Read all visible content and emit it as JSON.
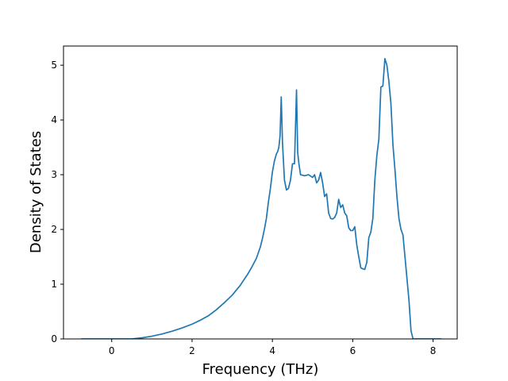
{
  "chart_data": {
    "type": "line",
    "title": "",
    "xlabel": "Frequency (THz)",
    "ylabel": "Density of States",
    "xlim": [
      -1.2,
      8.6
    ],
    "ylim": [
      0,
      5.35
    ],
    "xticks": [
      0,
      2,
      4,
      6,
      8
    ],
    "yticks": [
      0,
      1,
      2,
      3,
      4,
      5
    ],
    "grid": false,
    "legend": "none",
    "line_color": "#1f77b4",
    "series": [
      {
        "x": [
          -0.75,
          -0.5,
          -0.25,
          0.0,
          0.25,
          0.5,
          0.75,
          1.0,
          1.25,
          1.5,
          1.75,
          2.0,
          2.2,
          2.4,
          2.6,
          2.8,
          3.0,
          3.2,
          3.4,
          3.5,
          3.6,
          3.7,
          3.75,
          3.8,
          3.85,
          3.9,
          3.95,
          4.0,
          4.05,
          4.1,
          4.13,
          4.16,
          4.19,
          4.22,
          4.25,
          4.3,
          4.35,
          4.4,
          4.45,
          4.5,
          4.55,
          4.6,
          4.63,
          4.66,
          4.7,
          4.8,
          4.9,
          5.0,
          5.05,
          5.1,
          5.15,
          5.2,
          5.25,
          5.3,
          5.35,
          5.4,
          5.45,
          5.5,
          5.55,
          5.6,
          5.65,
          5.7,
          5.75,
          5.8,
          5.85,
          5.9,
          5.95,
          6.0,
          6.05,
          6.1,
          6.15,
          6.2,
          6.25,
          6.3,
          6.35,
          6.4,
          6.45,
          6.5,
          6.55,
          6.6,
          6.65,
          6.7,
          6.75,
          6.8,
          6.85,
          6.9,
          6.95,
          7.0,
          7.05,
          7.1,
          7.15,
          7.2,
          7.25,
          7.3,
          7.35,
          7.4,
          7.45,
          7.5,
          7.7,
          8.0,
          8.2
        ],
        "y": [
          0.0,
          0.0,
          0.0,
          0.0,
          0.0,
          0.0,
          0.02,
          0.05,
          0.09,
          0.14,
          0.2,
          0.27,
          0.34,
          0.42,
          0.53,
          0.66,
          0.8,
          0.98,
          1.2,
          1.33,
          1.47,
          1.68,
          1.83,
          2.0,
          2.2,
          2.5,
          2.75,
          3.05,
          3.25,
          3.38,
          3.42,
          3.5,
          3.7,
          4.42,
          3.6,
          2.9,
          2.72,
          2.75,
          2.9,
          3.2,
          3.2,
          4.55,
          3.4,
          3.2,
          3.0,
          2.98,
          3.0,
          2.95,
          3.0,
          2.85,
          2.9,
          3.04,
          2.85,
          2.6,
          2.65,
          2.3,
          2.2,
          2.19,
          2.22,
          2.3,
          2.55,
          2.4,
          2.45,
          2.3,
          2.25,
          2.03,
          1.98,
          1.98,
          2.05,
          1.72,
          1.5,
          1.3,
          1.28,
          1.27,
          1.4,
          1.85,
          1.95,
          2.2,
          2.9,
          3.35,
          3.65,
          4.6,
          4.62,
          5.12,
          5.0,
          4.7,
          4.3,
          3.55,
          3.1,
          2.6,
          2.2,
          2.0,
          1.9,
          1.5,
          1.1,
          0.7,
          0.15,
          0.0,
          0.0,
          0.0,
          0.0
        ]
      }
    ]
  }
}
